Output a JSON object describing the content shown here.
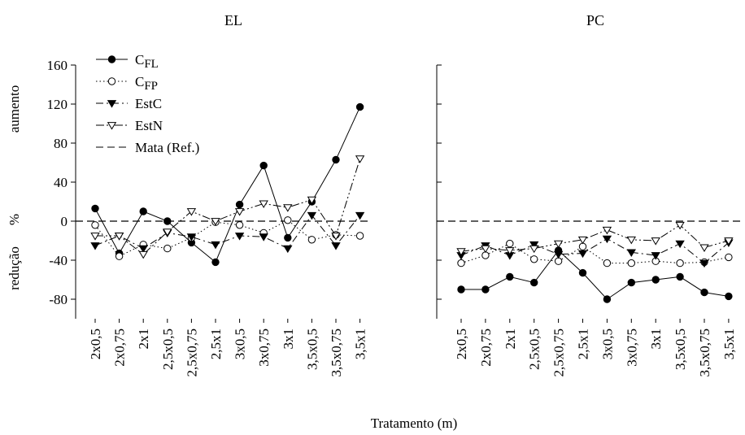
{
  "chart_data": {
    "type": "line",
    "xlabel": "Tratamento (m)",
    "ylabel": {
      "top": "aumento",
      "middle": "%",
      "bottom": "redução"
    },
    "categories": [
      "2x0,5",
      "2x0,75",
      "2x1",
      "2,5x0,5",
      "2,5x0,75",
      "2,5x1",
      "3x0,5",
      "3x0,75",
      "3x1",
      "3,5x0,5",
      "3,5x0,75",
      "3,5x1"
    ],
    "ylim": [
      -100,
      160
    ],
    "yticks": [
      -80,
      -40,
      0,
      40,
      80,
      120,
      160
    ],
    "reference_value": 0,
    "legend": {
      "placement": "top-left of left panel",
      "entries": [
        {
          "key": "CFL",
          "main": "C",
          "sub": "FL",
          "style": "solid",
          "marker": "filled-circle"
        },
        {
          "key": "CFP",
          "main": "C",
          "sub": "FP",
          "style": "dotted",
          "marker": "open-circle"
        },
        {
          "key": "EstC",
          "main": "EstC",
          "sub": "",
          "style": "dash-dot",
          "marker": "filled-triangle-down"
        },
        {
          "key": "EstN",
          "main": "EstN",
          "sub": "",
          "style": "dash-dot-dot",
          "marker": "open-triangle-down"
        },
        {
          "key": "Mata",
          "main": "Mata (Ref.)",
          "sub": "",
          "style": "dashed",
          "marker": "none"
        }
      ]
    },
    "panels": [
      {
        "title": "EL",
        "series": [
          {
            "key": "CFL",
            "values": [
              13,
              -33,
              10,
              0,
              -22,
              -42,
              17,
              57,
              -17,
              20,
              63,
              117
            ]
          },
          {
            "key": "CFP",
            "values": [
              -4,
              -36,
              -24,
              -28,
              -17,
              -1,
              -4,
              -12,
              1,
              -19,
              -14,
              -15
            ]
          },
          {
            "key": "EstC",
            "values": [
              -25,
              -15,
              -28,
              -12,
              -16,
              -24,
              -15,
              -16,
              -28,
              6,
              -25,
              6
            ]
          },
          {
            "key": "EstN",
            "values": [
              -15,
              -15,
              -34,
              -11,
              10,
              0,
              10,
              18,
              14,
              22,
              -15,
              64
            ]
          }
        ]
      },
      {
        "title": "PC",
        "series": [
          {
            "key": "CFL",
            "values": [
              -70,
              -70,
              -57,
              -63,
              -30,
              -53,
              -80,
              -63,
              -60,
              -57,
              -73,
              -77
            ]
          },
          {
            "key": "CFP",
            "values": [
              -43,
              -35,
              -23,
              -39,
              -41,
              -26,
              -43,
              -43,
              -41,
              -43,
              -42,
              -37
            ]
          },
          {
            "key": "EstC",
            "values": [
              -35,
              -25,
              -35,
              -24,
              -34,
              -33,
              -18,
              -32,
              -35,
              -23,
              -43,
              -22
            ]
          },
          {
            "key": "EstN",
            "values": [
              -31,
              -28,
              -30,
              -28,
              -23,
              -19,
              -9,
              -19,
              -20,
              -4,
              -27,
              -20
            ]
          }
        ]
      }
    ]
  }
}
